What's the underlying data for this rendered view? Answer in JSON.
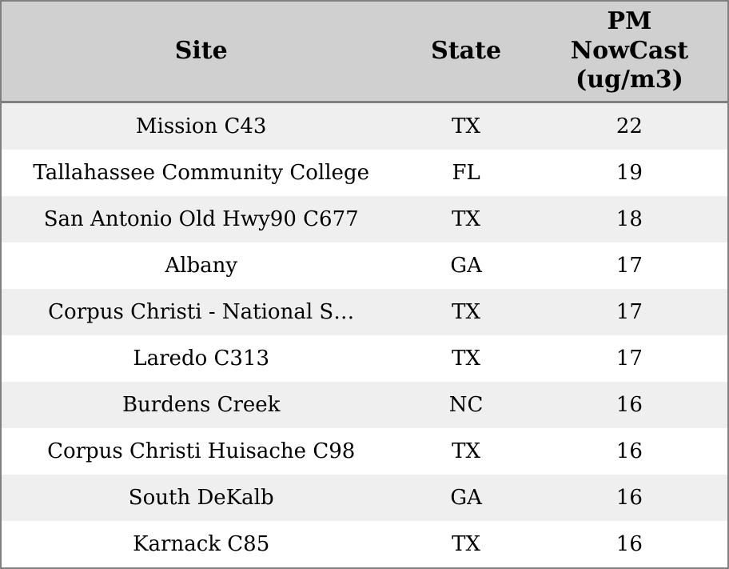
{
  "widget": {
    "title": "PM NowCast site readings table"
  },
  "colors": {
    "header_bg": "#d0d0d0",
    "row_alt_bg": "#efefef",
    "row_bg": "#ffffff",
    "border": "#808080",
    "text": "#000000"
  },
  "table": {
    "header": {
      "site": "Site",
      "state": "State",
      "pm": "PM\nNowCast\n(ug/m3)"
    },
    "rows": [
      {
        "site": "Mission C43",
        "state": "TX",
        "pm": "22"
      },
      {
        "site": "Tallahassee Community College",
        "state": "FL",
        "pm": "19"
      },
      {
        "site": "San Antonio Old Hwy90 C677",
        "state": "TX",
        "pm": "18"
      },
      {
        "site": "Albany",
        "state": "GA",
        "pm": "17"
      },
      {
        "site": "Corpus Christi - National S…",
        "state": "TX",
        "pm": "17"
      },
      {
        "site": "Laredo C313",
        "state": "TX",
        "pm": "17"
      },
      {
        "site": "Burdens Creek",
        "state": "NC",
        "pm": "16"
      },
      {
        "site": "Corpus Christi Huisache C98",
        "state": "TX",
        "pm": "16"
      },
      {
        "site": "South DeKalb",
        "state": "GA",
        "pm": "16"
      },
      {
        "site": "Karnack C85",
        "state": "TX",
        "pm": "16"
      }
    ]
  },
  "chart_data": {
    "type": "table",
    "title": "PM NowCast (ug/m3) by monitoring site",
    "columns": [
      "Site",
      "State",
      "PM NowCast (ug/m3)"
    ],
    "rows": [
      [
        "Mission C43",
        "TX",
        22
      ],
      [
        "Tallahassee Community College",
        "FL",
        19
      ],
      [
        "San Antonio Old Hwy90 C677",
        "TX",
        18
      ],
      [
        "Albany",
        "GA",
        17
      ],
      [
        "Corpus Christi - National S…",
        "TX",
        17
      ],
      [
        "Laredo C313",
        "TX",
        17
      ],
      [
        "Burdens Creek",
        "NC",
        16
      ],
      [
        "Corpus Christi Huisache C98",
        "TX",
        16
      ],
      [
        "South DeKalb",
        "GA",
        16
      ],
      [
        "Karnack C85",
        "TX",
        16
      ]
    ]
  }
}
